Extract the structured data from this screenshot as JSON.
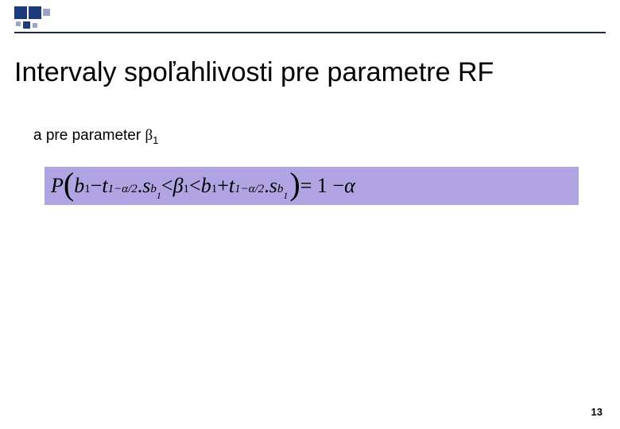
{
  "decor": {
    "colors": {
      "dark": "#1f3a7a",
      "light": "#9aa6c9",
      "line": "#1f2a44"
    }
  },
  "title": "Intervaly spoľahlivosti pre parametre RF",
  "subtitle_prefix": "a pre parameter ",
  "subtitle_symbol": "β",
  "subtitle_sub": "1",
  "formula": {
    "background": "#b0a4e3",
    "P": "P",
    "lparen": "(",
    "b": "b",
    "one": "1",
    "minus": " − ",
    "t": "t",
    "tsub": "1−α/2",
    "dot": ".",
    "s": "s",
    "ssub": "b",
    "ssub2": "1",
    "lt1": " < ",
    "beta": "β",
    "lt2": " < ",
    "plus": " + ",
    "rparen": ")",
    "eq": "= 1 − ",
    "alpha": "α"
  },
  "page_number": "13"
}
